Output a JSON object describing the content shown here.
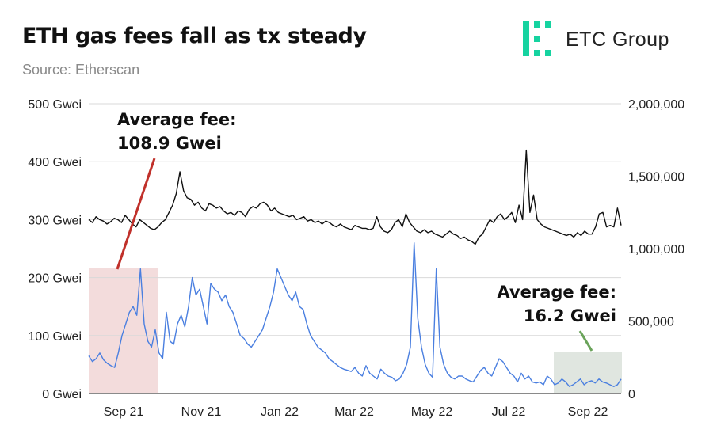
{
  "header": {
    "title": "ETH gas fees fall as tx steady",
    "subtitle": "Source: Etherscan",
    "logo_text": "ETC Group"
  },
  "colors": {
    "fee_line": "#4a7fe0",
    "tx_line": "#111111",
    "highlight_left": "#f3dcdc",
    "highlight_right": "#e0e6e0",
    "pointer_left": "#c0302a",
    "pointer_right": "#6aa35a",
    "logo_green": "#16d3a0"
  },
  "chart_data": {
    "type": "line",
    "x_ticks": [
      "Sep 21",
      "Nov 21",
      "Jan 22",
      "Mar 22",
      "May 22",
      "Jul 22",
      "Sep 22"
    ],
    "y_left": {
      "ticks": [
        "0 Gwei",
        "100 Gwei",
        "200 Gwei",
        "300 Gwei",
        "400 Gwei",
        "500 Gwei"
      ],
      "range": [
        0,
        500
      ]
    },
    "y_right": {
      "ticks": [
        "0",
        "500,000",
        "1,000,000",
        "1,500,000",
        "2,000,000"
      ],
      "range": [
        0,
        2000000
      ]
    },
    "grid": true,
    "series": [
      {
        "axis": "left",
        "values": [
          65,
          55,
          60,
          70,
          58,
          52,
          48,
          45,
          70,
          100,
          120,
          140,
          150,
          135,
          215,
          120,
          90,
          80,
          110,
          70,
          60,
          140,
          90,
          85,
          120,
          135,
          115,
          150,
          200,
          170,
          180,
          150,
          120,
          190,
          180,
          175,
          160,
          170,
          150,
          140,
          120,
          100,
          95,
          85,
          80,
          90,
          100,
          110,
          130,
          150,
          175,
          215,
          200,
          185,
          170,
          160,
          175,
          150,
          145,
          120,
          100,
          90,
          80,
          75,
          70,
          60,
          55,
          50,
          45,
          42,
          40,
          38,
          45,
          35,
          30,
          48,
          35,
          30,
          25,
          42,
          35,
          30,
          28,
          22,
          25,
          35,
          50,
          80,
          260,
          130,
          80,
          50,
          35,
          28,
          215,
          80,
          50,
          35,
          28,
          25,
          30,
          30,
          25,
          22,
          20,
          30,
          40,
          45,
          35,
          30,
          45,
          60,
          55,
          45,
          35,
          30,
          20,
          35,
          25,
          30,
          20,
          18,
          20,
          15,
          30,
          25,
          15,
          18,
          25,
          20,
          12,
          15,
          20,
          25,
          15,
          20,
          22,
          18,
          25,
          20,
          18,
          15,
          12,
          15,
          25
        ],
        "values_note": ""
      },
      {
        "axis": "right",
        "values": [
          1200000,
          1180000,
          1220000,
          1200000,
          1190000,
          1170000,
          1185000,
          1210000,
          1200000,
          1180000,
          1230000,
          1200000,
          1170000,
          1150000,
          1200000,
          1180000,
          1160000,
          1140000,
          1130000,
          1150000,
          1180000,
          1200000,
          1250000,
          1300000,
          1380000,
          1530000,
          1400000,
          1350000,
          1340000,
          1300000,
          1320000,
          1280000,
          1260000,
          1310000,
          1300000,
          1280000,
          1290000,
          1260000,
          1240000,
          1250000,
          1230000,
          1260000,
          1250000,
          1220000,
          1270000,
          1290000,
          1280000,
          1310000,
          1320000,
          1300000,
          1260000,
          1280000,
          1250000,
          1240000,
          1230000,
          1220000,
          1230000,
          1200000,
          1210000,
          1220000,
          1190000,
          1200000,
          1180000,
          1190000,
          1170000,
          1190000,
          1180000,
          1160000,
          1150000,
          1170000,
          1150000,
          1140000,
          1130000,
          1160000,
          1150000,
          1140000,
          1140000,
          1130000,
          1140000,
          1220000,
          1150000,
          1120000,
          1110000,
          1130000,
          1180000,
          1200000,
          1150000,
          1240000,
          1180000,
          1150000,
          1120000,
          1110000,
          1130000,
          1110000,
          1120000,
          1100000,
          1090000,
          1080000,
          1100000,
          1120000,
          1100000,
          1090000,
          1070000,
          1080000,
          1060000,
          1050000,
          1030000,
          1080000,
          1100000,
          1150000,
          1200000,
          1180000,
          1220000,
          1240000,
          1200000,
          1220000,
          1250000,
          1180000,
          1300000,
          1200000,
          1680000,
          1250000,
          1370000,
          1200000,
          1170000,
          1150000,
          1140000,
          1130000,
          1120000,
          1110000,
          1100000,
          1090000,
          1100000,
          1080000,
          1110000,
          1090000,
          1120000,
          1100000,
          1100000,
          1150000,
          1240000,
          1250000,
          1150000,
          1160000,
          1150000,
          1280000,
          1160000
        ]
      }
    ],
    "annotations": [
      {
        "line1": "Average fee:",
        "line2": "108.9 Gwei"
      },
      {
        "line1": "Average fee:",
        "line2": "16.2 Gwei"
      }
    ]
  }
}
